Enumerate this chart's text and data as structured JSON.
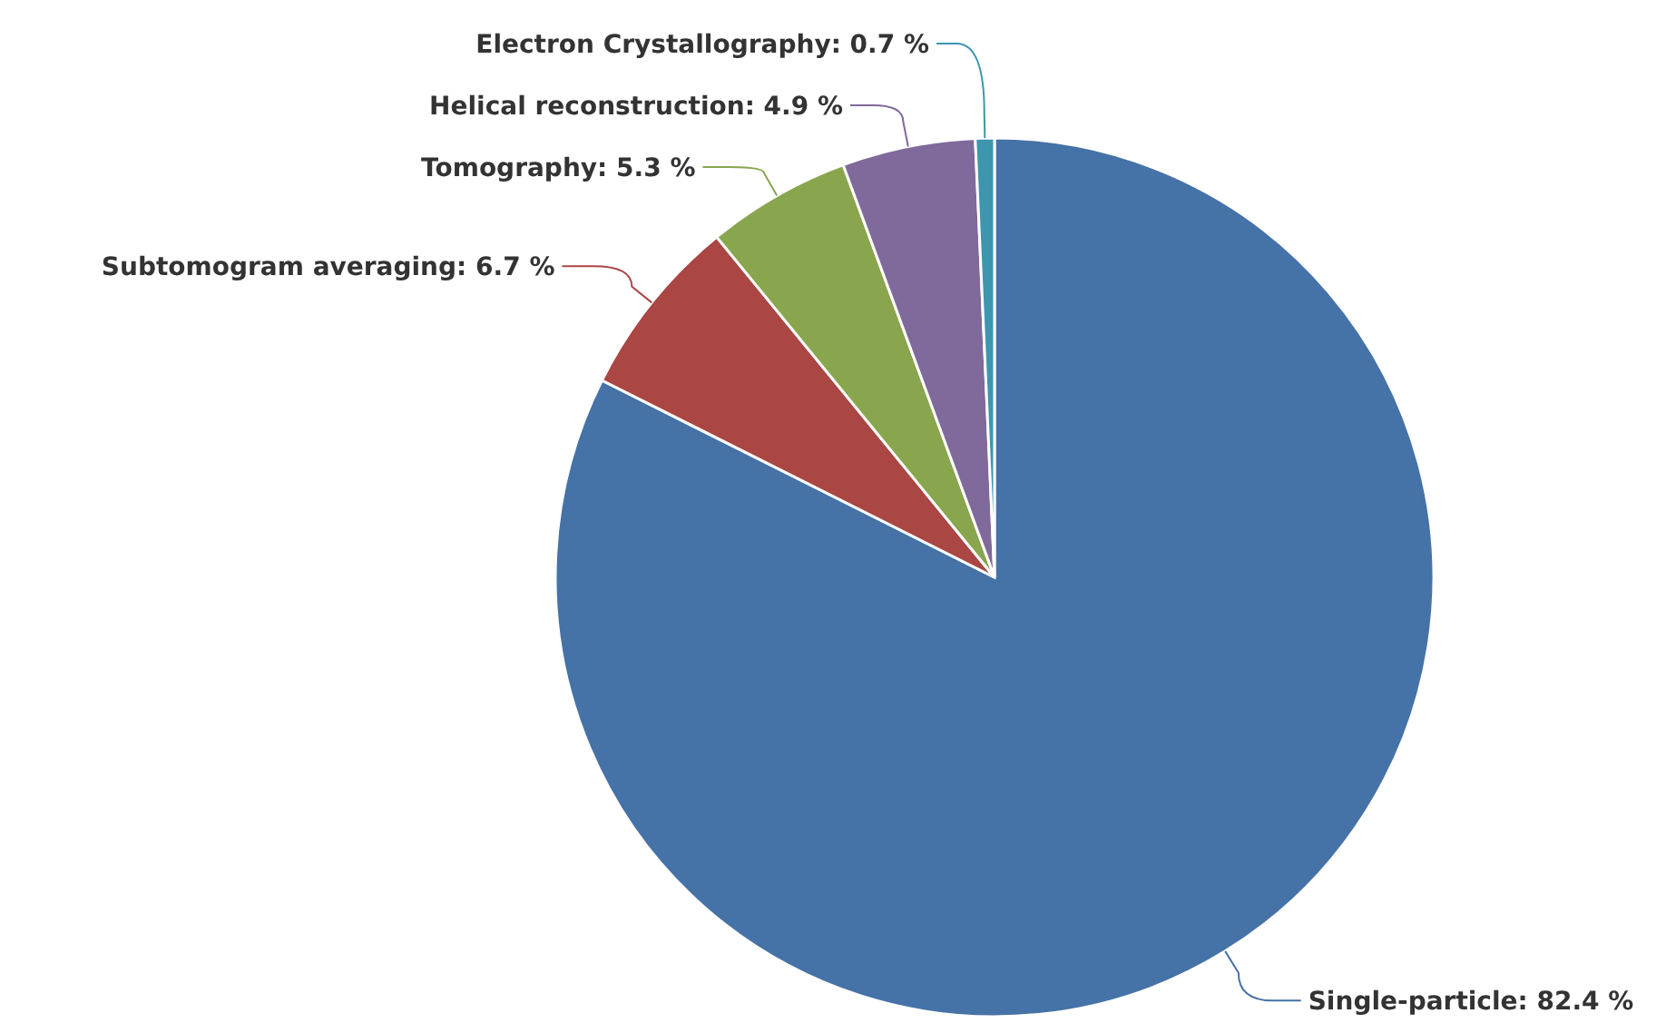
{
  "chart_data": {
    "type": "pie",
    "categories": [
      "Single-particle",
      "Subtomogram averaging",
      "Tomography",
      "Helical reconstruction",
      "Electron Crystallography"
    ],
    "values": [
      82.4,
      6.7,
      5.3,
      4.9,
      0.7
    ],
    "colors": [
      "#4572a7",
      "#aa4643",
      "#89a54e",
      "#80699b",
      "#3d96ae"
    ],
    "value_labels": [
      "82.4 %",
      "6.7 %",
      "5.3 %",
      "4.9 %",
      "0.7 %"
    ]
  }
}
